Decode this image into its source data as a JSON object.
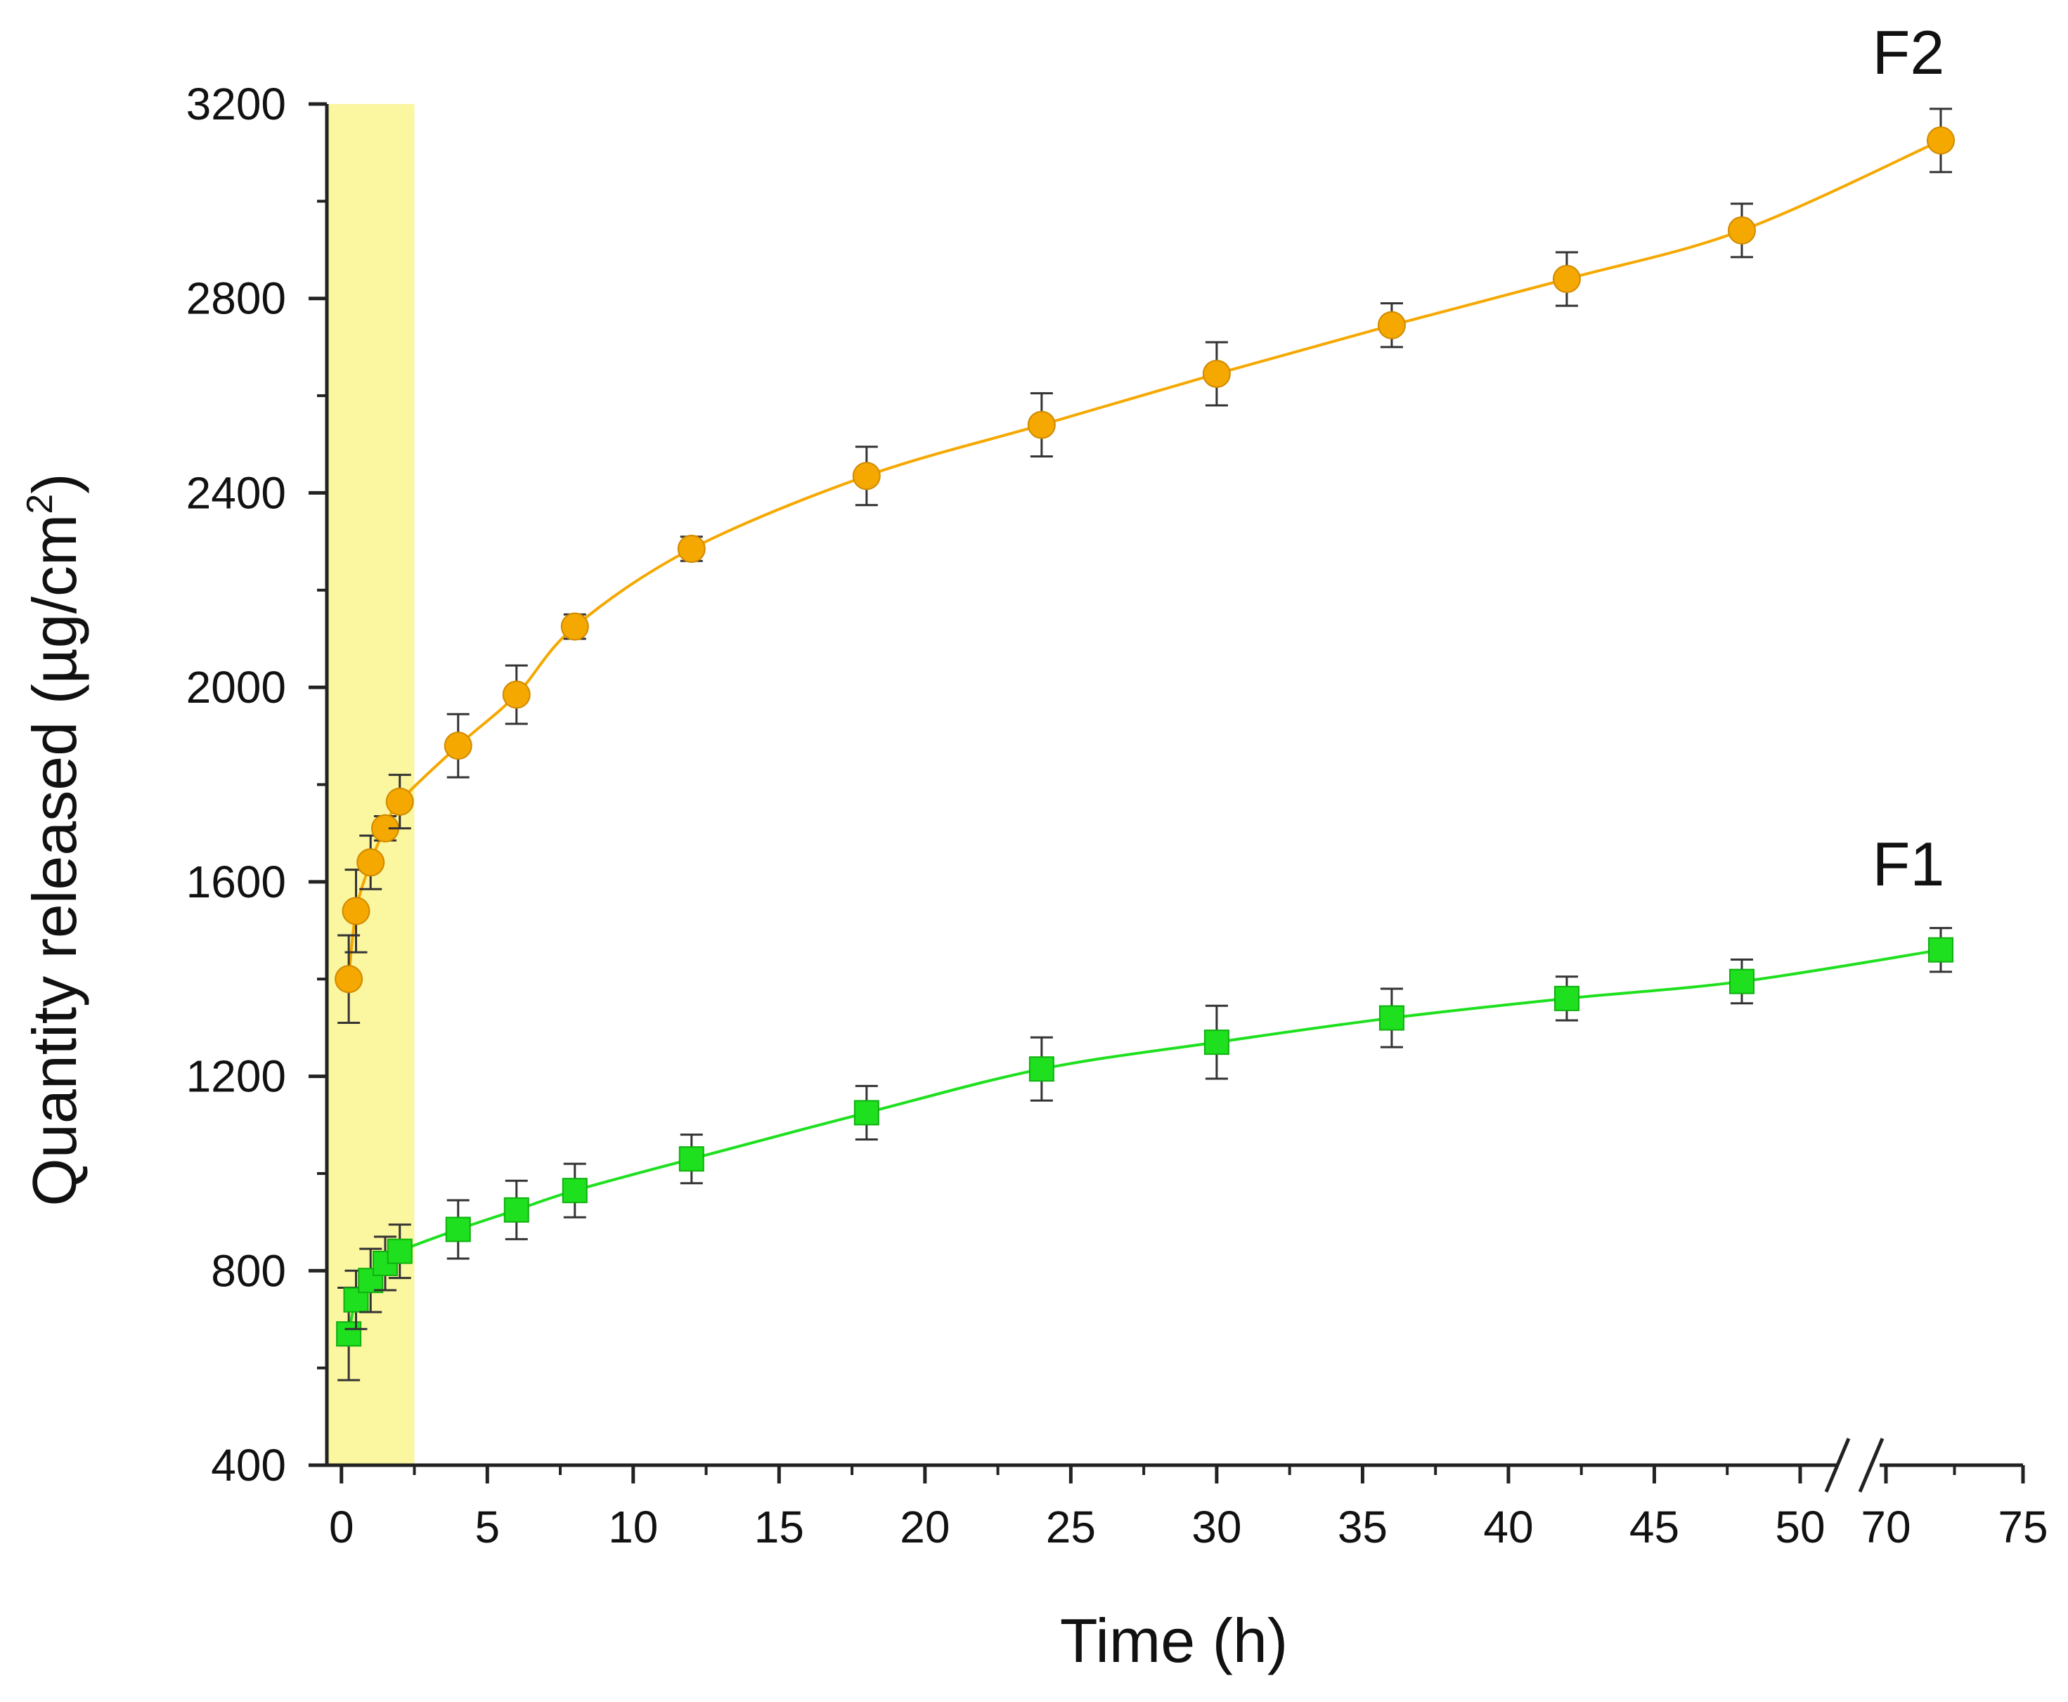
{
  "chart_data": {
    "type": "scatter",
    "title": "",
    "xlabel": "Time (h)",
    "ylabel": "Quantity released (µg/cm²)",
    "ylabel_main": "Quantity released (µg/cm",
    "ylabel_sup": "2",
    "ylabel_end": ")",
    "ylim": [
      400,
      3200
    ],
    "y_ticks": [
      400,
      800,
      1200,
      1600,
      2000,
      2400,
      2800,
      3200
    ],
    "x_break": {
      "before_range": [
        -0.5,
        52
      ],
      "after_range": [
        69,
        75
      ]
    },
    "x_ticks": [
      0,
      5,
      10,
      15,
      20,
      25,
      30,
      35,
      40,
      45,
      50,
      70,
      75
    ],
    "shaded_region": {
      "x": [
        -0.5,
        2.5
      ],
      "color": "#fbf6a0"
    },
    "series": [
      {
        "name": "F2",
        "marker": "circle",
        "color": "#f5a800",
        "x": [
          0.25,
          0.5,
          1,
          1.5,
          2,
          4,
          6,
          8,
          12,
          18,
          24,
          30,
          36,
          42,
          48,
          72
        ],
        "y": [
          1400,
          1540,
          1640,
          1710,
          1765,
          1880,
          1985,
          2125,
          2285,
          2435,
          2540,
          2645,
          2745,
          2840,
          2940,
          3125
        ],
        "err": [
          90,
          85,
          55,
          25,
          55,
          65,
          60,
          25,
          25,
          60,
          65,
          65,
          45,
          55,
          55,
          65
        ]
      },
      {
        "name": "F1",
        "marker": "square",
        "color": "#1ee01e",
        "x": [
          0.25,
          0.5,
          1,
          1.5,
          2,
          4,
          6,
          8,
          12,
          18,
          24,
          30,
          36,
          42,
          48,
          72
        ],
        "y": [
          670,
          740,
          780,
          815,
          840,
          885,
          925,
          965,
          1030,
          1125,
          1215,
          1270,
          1320,
          1360,
          1395,
          1460
        ],
        "err": [
          95,
          60,
          65,
          55,
          55,
          60,
          60,
          55,
          50,
          55,
          65,
          75,
          60,
          45,
          45,
          45
        ]
      }
    ]
  }
}
